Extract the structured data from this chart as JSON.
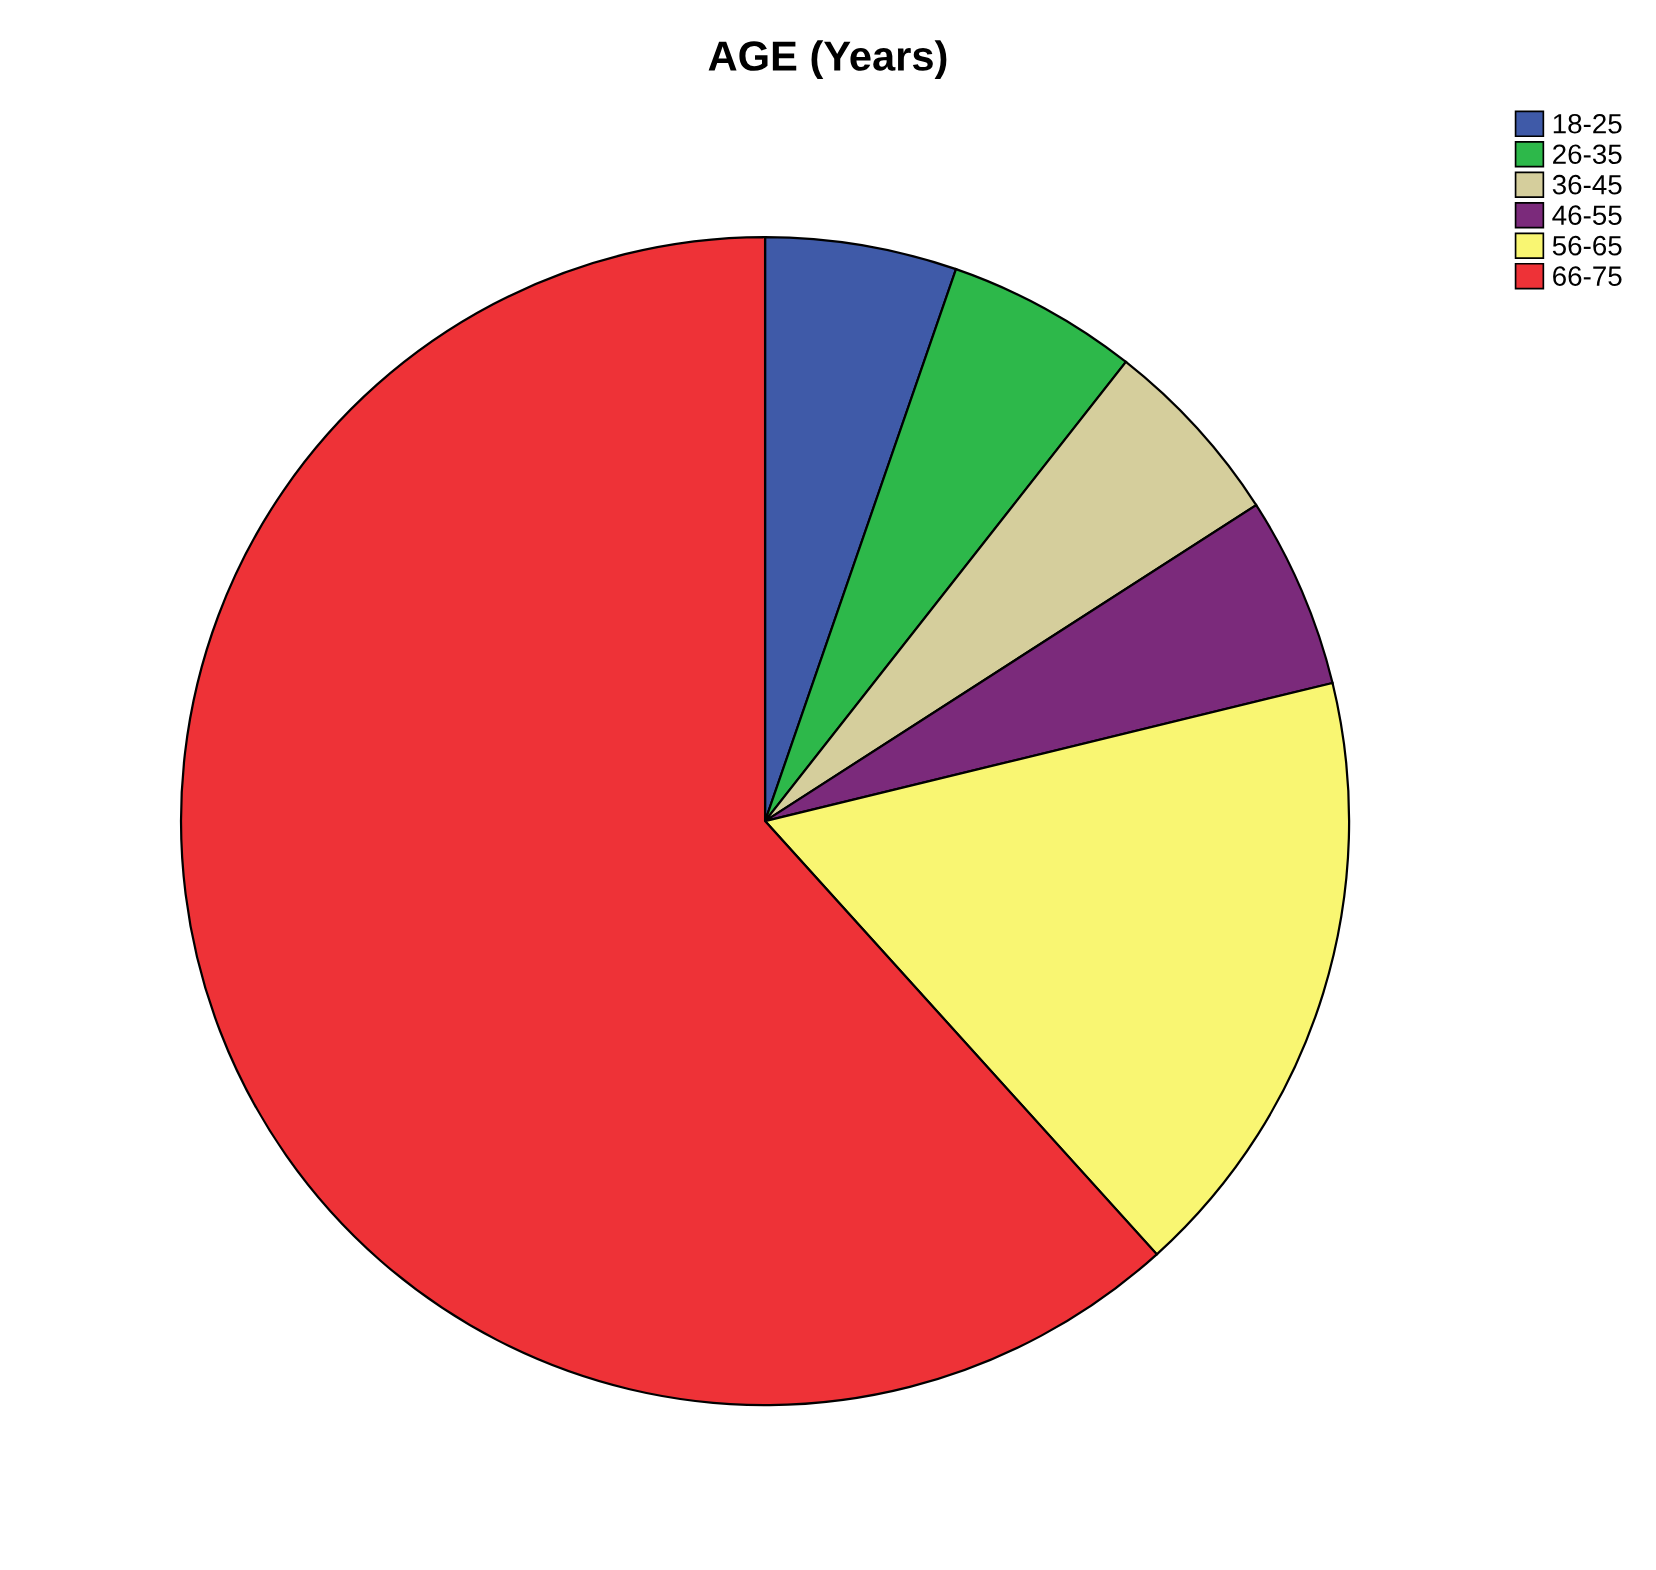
{
  "chart_data": {
    "type": "pie",
    "title": "AGE (Years)",
    "categories": [
      "18-25",
      "26-35",
      "36-45",
      "46-55",
      "56-65",
      "66-75"
    ],
    "values": [
      5.3,
      5.3,
      5.3,
      5.3,
      17.1,
      61.7
    ],
    "colors": [
      "#3f5aa8",
      "#2db84a",
      "#d5ce9c",
      "#7b2a7b",
      "#f9f672",
      "#ee3237"
    ],
    "legend": "top right"
  }
}
